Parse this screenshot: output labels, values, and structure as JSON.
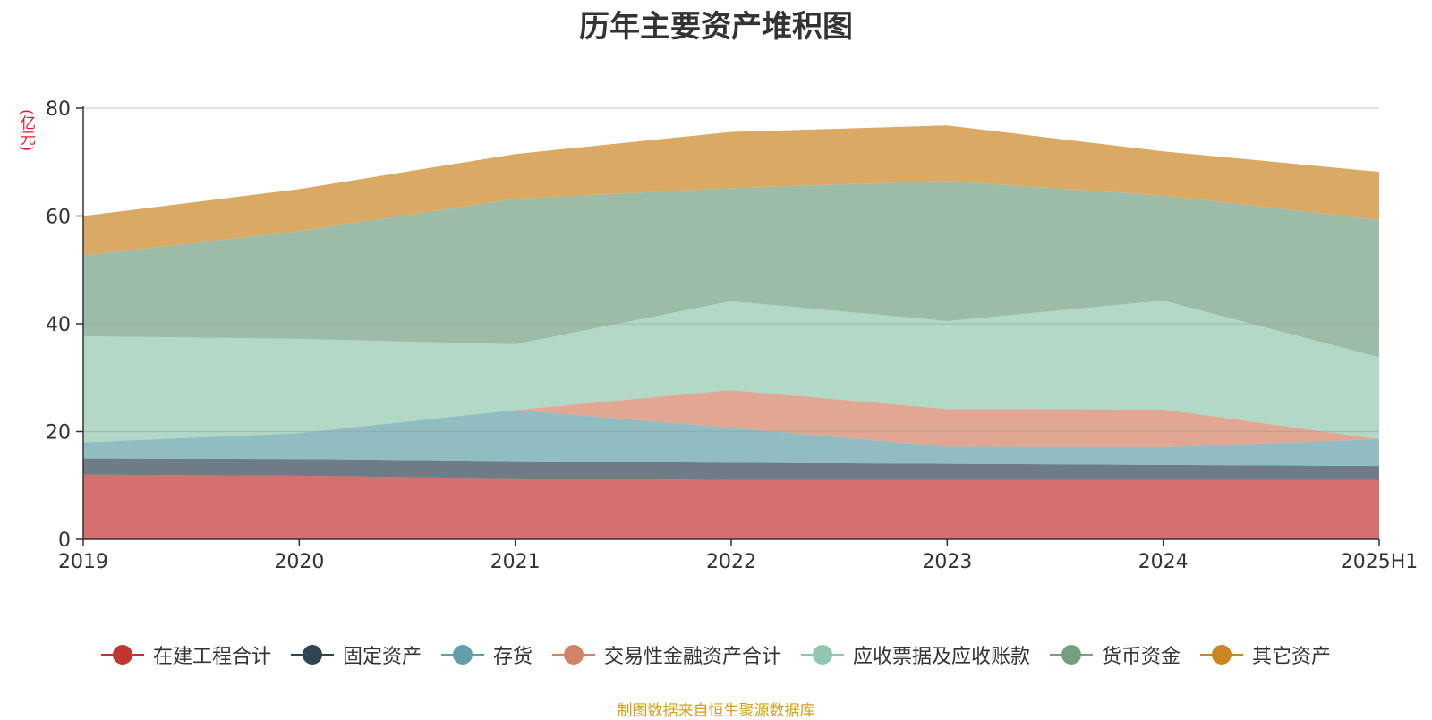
{
  "chart_data": {
    "type": "area",
    "stacked": true,
    "title": "历年主要资产堆积图",
    "unit_label": "(亿元)",
    "x": [
      "2019",
      "2020",
      "2021",
      "2022",
      "2023",
      "2024",
      "2025H1"
    ],
    "ylim": [
      0,
      80
    ],
    "yticks": [
      0,
      20,
      40,
      60,
      80
    ],
    "grid": true,
    "legend_position": "bottom",
    "series": [
      {
        "name": "在建工程合计",
        "color": "#c23531",
        "values": [
          12.0,
          11.8,
          11.3,
          11.0,
          11.0,
          11.0,
          11.0
        ]
      },
      {
        "name": "固定资产",
        "color": "#2f4554",
        "values": [
          3.0,
          3.1,
          3.2,
          3.2,
          3.0,
          2.8,
          2.6
        ]
      },
      {
        "name": "存货",
        "color": "#61a0a8",
        "values": [
          3.0,
          4.8,
          9.5,
          6.5,
          3.2,
          3.3,
          5.0
        ]
      },
      {
        "name": "交易性金融资产合计",
        "color": "#d48265",
        "values": [
          0.0,
          0.0,
          0.0,
          7.0,
          7.0,
          7.0,
          0.0
        ]
      },
      {
        "name": "应收票据及应收账款",
        "color": "#91c7ae",
        "values": [
          19.7,
          17.5,
          12.2,
          16.5,
          16.3,
          20.2,
          15.2
        ]
      },
      {
        "name": "货币资金",
        "color": "#749f83",
        "values": [
          15.0,
          20.0,
          27.0,
          21.0,
          26.0,
          19.5,
          25.5
        ]
      },
      {
        "name": "其它资产",
        "color": "#ca8622",
        "values": [
          7.3,
          7.8,
          8.3,
          10.4,
          10.3,
          8.2,
          8.9
        ]
      }
    ]
  },
  "source_note": "制图数据来自恒生聚源数据库"
}
